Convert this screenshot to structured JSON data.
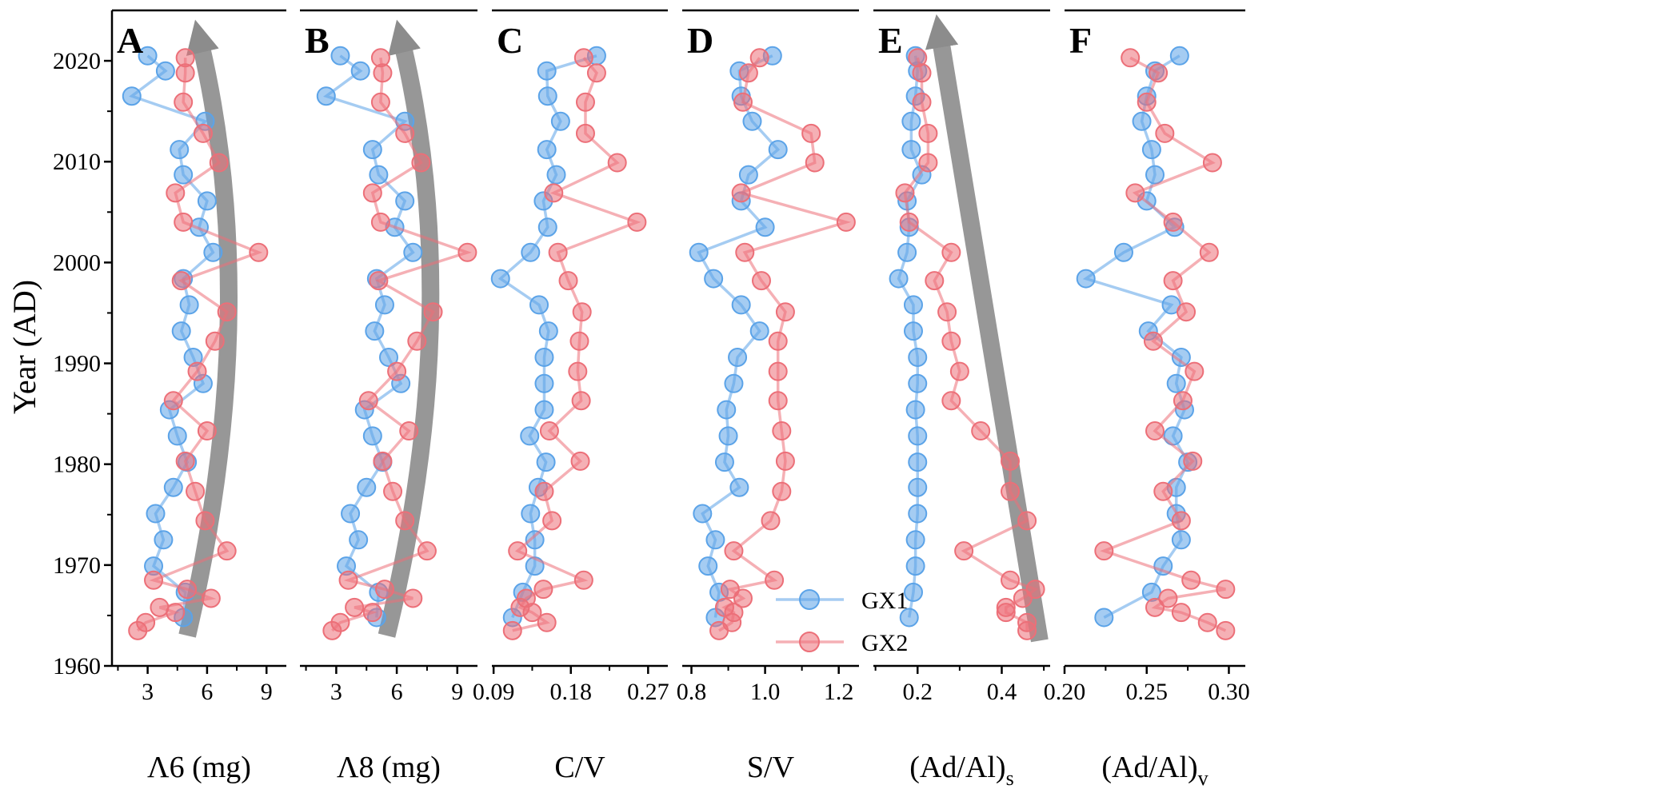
{
  "chart_data": {
    "type": "scatter",
    "ylabel": "Year (AD)",
    "ylim": [
      1960,
      2025
    ],
    "yticks": [
      1960,
      1970,
      1980,
      1990,
      2000,
      2010,
      2020
    ],
    "legend": {
      "position": "bottom-center",
      "entries": [
        "GX1",
        "GX2"
      ]
    },
    "series_colors": {
      "GX1": "#5ba3e8",
      "GX2": "#ec6f78"
    },
    "trend_arrow_color": "#8c8c8c",
    "years_gx1": [
      2020.5,
      2019,
      2016.5,
      2014,
      2011.2,
      2008.7,
      2006.1,
      2003.5,
      2001,
      1998.4,
      1995.8,
      1993.2,
      1990.6,
      1988,
      1985.4,
      1982.8,
      1980.2,
      1977.7,
      1975.1,
      1972.5,
      1969.9,
      1967.3,
      1964.8
    ],
    "years_gx2": [
      2020.3,
      2018.8,
      2015.9,
      2012.8,
      2009.9,
      2006.9,
      2004,
      2001,
      1998.2,
      1995.1,
      1992.2,
      1989.2,
      1986.3,
      1983.3,
      1980.3,
      1977.3,
      1974.4,
      1971.4,
      1968.5,
      1967.6,
      1966.7,
      1965.8,
      1965.3,
      1964.3,
      1963.5
    ],
    "panels": [
      {
        "letter": "A",
        "xlabel": "Λ6 (mg)",
        "xlim": [
          1.2,
          10.0
        ],
        "xticks": [
          3,
          6,
          9
        ],
        "xtick_labels": [
          "3",
          "6",
          "9"
        ],
        "gx1": [
          3.0,
          3.9,
          2.2,
          5.9,
          4.6,
          4.8,
          6.0,
          5.6,
          6.3,
          4.8,
          5.1,
          4.7,
          5.3,
          5.8,
          4.1,
          4.5,
          5.0,
          4.3,
          3.4,
          3.8,
          3.3,
          4.9,
          4.8
        ],
        "gx2": [
          4.9,
          4.9,
          4.8,
          5.8,
          6.6,
          4.4,
          4.8,
          8.6,
          4.7,
          7.0,
          6.4,
          5.5,
          4.3,
          6.0,
          4.9,
          5.4,
          5.9,
          7.0,
          3.3,
          5.0,
          6.2,
          3.6,
          4.4,
          2.9,
          2.5
        ],
        "arrow": {
          "from": [
            5.0,
            1963.0
          ],
          "ctrl": [
            8.8,
            1995
          ],
          "to": [
            5.7,
            2021.5
          ]
        }
      },
      {
        "letter": "B",
        "xlabel": "Λ8 (mg)",
        "xlim": [
          1.2,
          10.0
        ],
        "xticks": [
          3,
          6,
          9
        ],
        "xtick_labels": [
          "3",
          "6",
          "9"
        ],
        "gx1": [
          3.2,
          4.2,
          2.5,
          6.4,
          4.8,
          5.1,
          6.4,
          5.9,
          6.8,
          5.0,
          5.4,
          4.9,
          5.6,
          6.2,
          4.4,
          4.8,
          5.3,
          4.5,
          3.7,
          4.1,
          3.5,
          5.1,
          5.0
        ],
        "gx2": [
          5.2,
          5.3,
          5.2,
          6.4,
          7.2,
          4.8,
          5.2,
          9.5,
          5.1,
          7.8,
          7.0,
          6.0,
          4.6,
          6.6,
          5.3,
          5.8,
          6.4,
          7.5,
          3.6,
          5.4,
          6.8,
          3.9,
          4.8,
          3.2,
          2.8
        ],
        "arrow": {
          "from": [
            5.5,
            1963.0
          ],
          "ctrl": [
            9.4,
            1995
          ],
          "to": [
            6.3,
            2021.5
          ]
        }
      },
      {
        "letter": "C",
        "xlabel": "C/V",
        "xlim": [
          0.088,
          0.293
        ],
        "xticks": [
          0.09,
          0.18,
          0.27
        ],
        "xtick_labels": [
          "0.09",
          "0.18",
          "0.27"
        ],
        "gx1": [
          0.21,
          0.152,
          0.153,
          0.168,
          0.152,
          0.163,
          0.148,
          0.153,
          0.133,
          0.098,
          0.143,
          0.154,
          0.149,
          0.149,
          0.149,
          0.132,
          0.151,
          0.142,
          0.133,
          0.138,
          0.138,
          0.124,
          0.112
        ],
        "gx2": [
          0.195,
          0.21,
          0.197,
          0.197,
          0.234,
          0.16,
          0.257,
          0.165,
          0.177,
          0.193,
          0.19,
          0.188,
          0.192,
          0.155,
          0.191,
          0.149,
          0.158,
          0.118,
          0.195,
          0.148,
          0.128,
          0.121,
          0.135,
          0.152,
          0.112
        ],
        "arrow": null
      },
      {
        "letter": "D",
        "xlabel": "S/V",
        "xlim": [
          0.775,
          1.255
        ],
        "xticks": [
          0.8,
          1.0,
          1.2
        ],
        "xtick_labels": [
          "0.8",
          "1.0",
          "1.2"
        ],
        "gx1": [
          1.02,
          0.93,
          0.935,
          0.965,
          1.035,
          0.955,
          0.935,
          1.0,
          0.82,
          0.86,
          0.935,
          0.985,
          0.925,
          0.915,
          0.895,
          0.9,
          0.89,
          0.93,
          0.83,
          0.865,
          0.845,
          0.875,
          0.865
        ],
        "gx2": [
          0.985,
          0.955,
          0.94,
          1.125,
          1.135,
          0.935,
          1.22,
          0.945,
          0.99,
          1.055,
          1.035,
          1.035,
          1.035,
          1.045,
          1.055,
          1.045,
          1.015,
          0.915,
          1.025,
          0.905,
          0.94,
          0.89,
          0.915,
          0.91,
          0.875
        ],
        "arrow": null
      },
      {
        "letter": "E",
        "xlabel": "(Ad/Al)",
        "xlabel_sub": "s",
        "xlim": [
          0.095,
          0.515
        ],
        "xticks": [
          0.2,
          0.4
        ],
        "xtick_labels": [
          "0.2",
          "0.4"
        ],
        "gx1": [
          0.195,
          0.2,
          0.195,
          0.185,
          0.185,
          0.21,
          0.175,
          0.18,
          0.175,
          0.155,
          0.19,
          0.19,
          0.2,
          0.2,
          0.195,
          0.2,
          0.2,
          0.2,
          0.2,
          0.195,
          0.195,
          0.19,
          0.18
        ],
        "gx2": [
          0.2,
          0.21,
          0.21,
          0.225,
          0.225,
          0.17,
          0.18,
          0.28,
          0.24,
          0.27,
          0.28,
          0.3,
          0.28,
          0.35,
          0.42,
          0.42,
          0.46,
          0.31,
          0.42,
          0.48,
          0.45,
          0.41,
          0.41,
          0.46,
          0.46
        ],
        "arrow": {
          "from": [
            0.49,
            1962.5
          ],
          "to": [
            0.255,
            2022
          ]
        }
      },
      {
        "letter": "F",
        "xlabel": "(Ad/Al)",
        "xlabel_sub": "v",
        "xlim": [
          0.2,
          0.31
        ],
        "xticks": [
          0.2,
          0.25,
          0.3
        ],
        "xtick_labels": [
          "0.20",
          "0.25",
          "0.30"
        ],
        "gx1": [
          0.27,
          0.255,
          0.25,
          0.247,
          0.253,
          0.255,
          0.25,
          0.267,
          0.236,
          0.213,
          0.265,
          0.251,
          0.271,
          0.268,
          0.273,
          0.266,
          0.275,
          0.268,
          0.268,
          0.271,
          0.26,
          0.253,
          0.224
        ],
        "gx2": [
          0.24,
          0.257,
          0.25,
          0.261,
          0.29,
          0.243,
          0.266,
          0.288,
          0.266,
          0.274,
          0.254,
          0.279,
          0.272,
          0.255,
          0.278,
          0.26,
          0.271,
          0.224,
          0.277,
          0.298,
          0.263,
          0.255,
          0.271,
          0.287,
          0.298
        ],
        "arrow": null
      }
    ]
  }
}
